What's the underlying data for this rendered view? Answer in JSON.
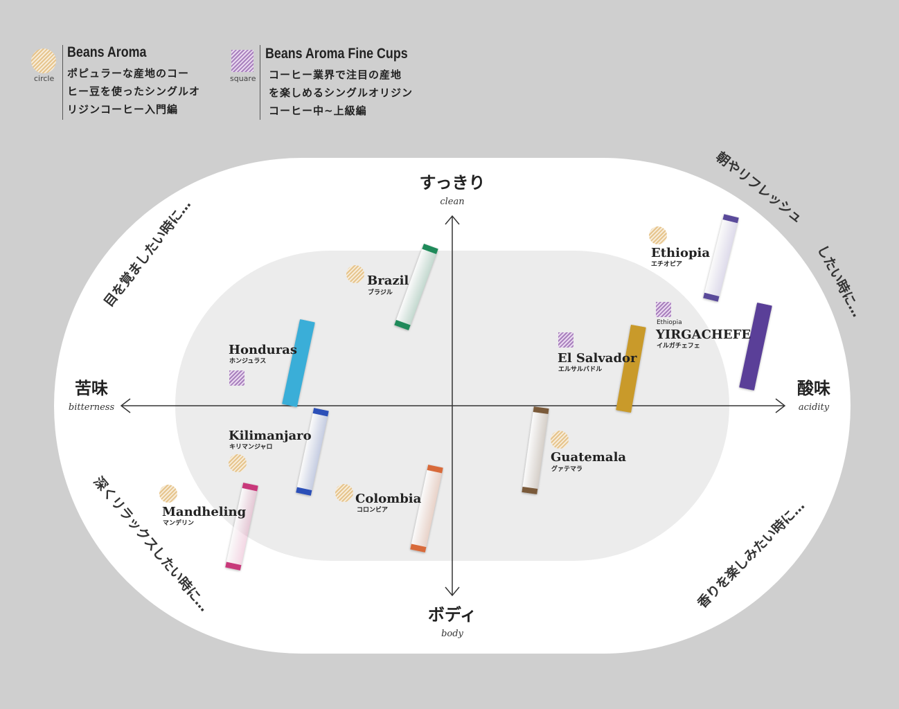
{
  "legend": [
    {
      "symbol": "circle",
      "title": "Beans Aroma",
      "desc": "ポピュラーな産地のコー\nヒー豆を使ったシングルオ\nリジンコーヒー入門編",
      "color": "#e6c48c"
    },
    {
      "symbol": "square",
      "title": "Beans Aroma Fine Cups",
      "desc": "コーヒー業界で注目の産地\nを楽しめるシングルオリジン\nコーヒー中~上級編",
      "color": "#a880bd"
    }
  ],
  "axes": {
    "top": {
      "ja": "すっきり",
      "en": "clean"
    },
    "bottom": {
      "ja": "ボディ",
      "en": "body"
    },
    "left": {
      "ja": "苦味",
      "en": "bitterness"
    },
    "right": {
      "ja": "酸味",
      "en": "acidity"
    }
  },
  "corners": {
    "top_left": "目を覚ましたい時に…",
    "top_right_1": "朝やリフレッシュ",
    "top_right_2": "したい時に…",
    "bottom_left": "深くリラックスしたい時に…",
    "bottom_right": "香りを楽しみたい時に…"
  },
  "origins": [
    {
      "name": "Brazil",
      "kana": "ブラジル",
      "type": "circle",
      "stick_color": "#1f8a5a"
    },
    {
      "name": "Honduras",
      "kana": "ホンジュラス",
      "type": "square",
      "stick_color": "#3aaed8"
    },
    {
      "name": "Kilimanjaro",
      "kana": "キリマンジャロ",
      "type": "circle",
      "stick_color": "#2b4fb8"
    },
    {
      "name": "Mandheling",
      "kana": "マンデリン",
      "type": "circle",
      "stick_color": "#c8387a"
    },
    {
      "name": "Colombia",
      "kana": "コロンビア",
      "type": "circle",
      "stick_color": "#d86a3a"
    },
    {
      "name": "Guatemala",
      "kana": "グァテマラ",
      "type": "circle",
      "stick_color": "#7a5a3a"
    },
    {
      "name": "El Salvador",
      "kana": "エルサルバドル",
      "type": "square",
      "stick_color": "#c99a2a"
    },
    {
      "name": "Ethiopia",
      "kana": "エチオピア",
      "type": "circle",
      "stick_color": "#5a4a9a"
    },
    {
      "name": "YIRGACHEFE",
      "prefix": "Ethiopia",
      "kana": "イルガチェフェ",
      "type": "square",
      "stick_color": "#5a3f98"
    }
  ]
}
